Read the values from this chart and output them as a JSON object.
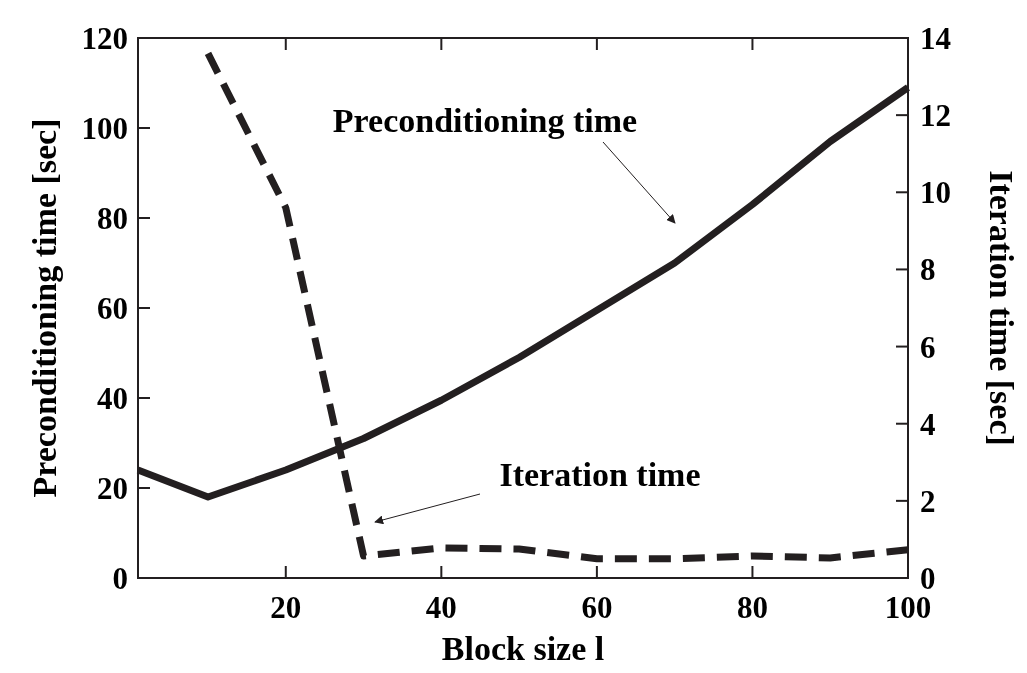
{
  "chart_data": {
    "type": "line",
    "xlabel": "Block size l",
    "ylabel": "Preconditioning time [sec]",
    "y2label": "Iteration time [sec]",
    "xlim": [
      1,
      100
    ],
    "xticks": [
      20,
      40,
      60,
      80,
      100
    ],
    "ylim": [
      0,
      120
    ],
    "yticks": [
      0,
      20,
      40,
      60,
      80,
      100,
      120
    ],
    "y2lim": [
      0,
      14
    ],
    "y2ticks": [
      0,
      2,
      4,
      6,
      8,
      10,
      12,
      14
    ],
    "grid": false,
    "series": [
      {
        "color": "#231f20",
        "line_style": "solid",
        "x": [
          1,
          10,
          20,
          30,
          40,
          50,
          60,
          70,
          80,
          90,
          100
        ],
        "values": [
          24,
          18,
          24,
          31,
          39.5,
          49,
          59.5,
          70,
          83,
          97,
          109
        ]
      },
      {
        "color": "#231f20",
        "line_style": "dashed",
        "axis": "y2",
        "x": [
          10,
          20,
          30,
          40,
          50,
          60,
          70,
          80,
          90,
          100
        ],
        "values": [
          13.6,
          9.6,
          0.57,
          0.78,
          0.75,
          0.5,
          0.5,
          0.57,
          0.52,
          0.73
        ]
      }
    ],
    "annotations": [
      "Preconditioning time",
      "Iteration time"
    ]
  }
}
